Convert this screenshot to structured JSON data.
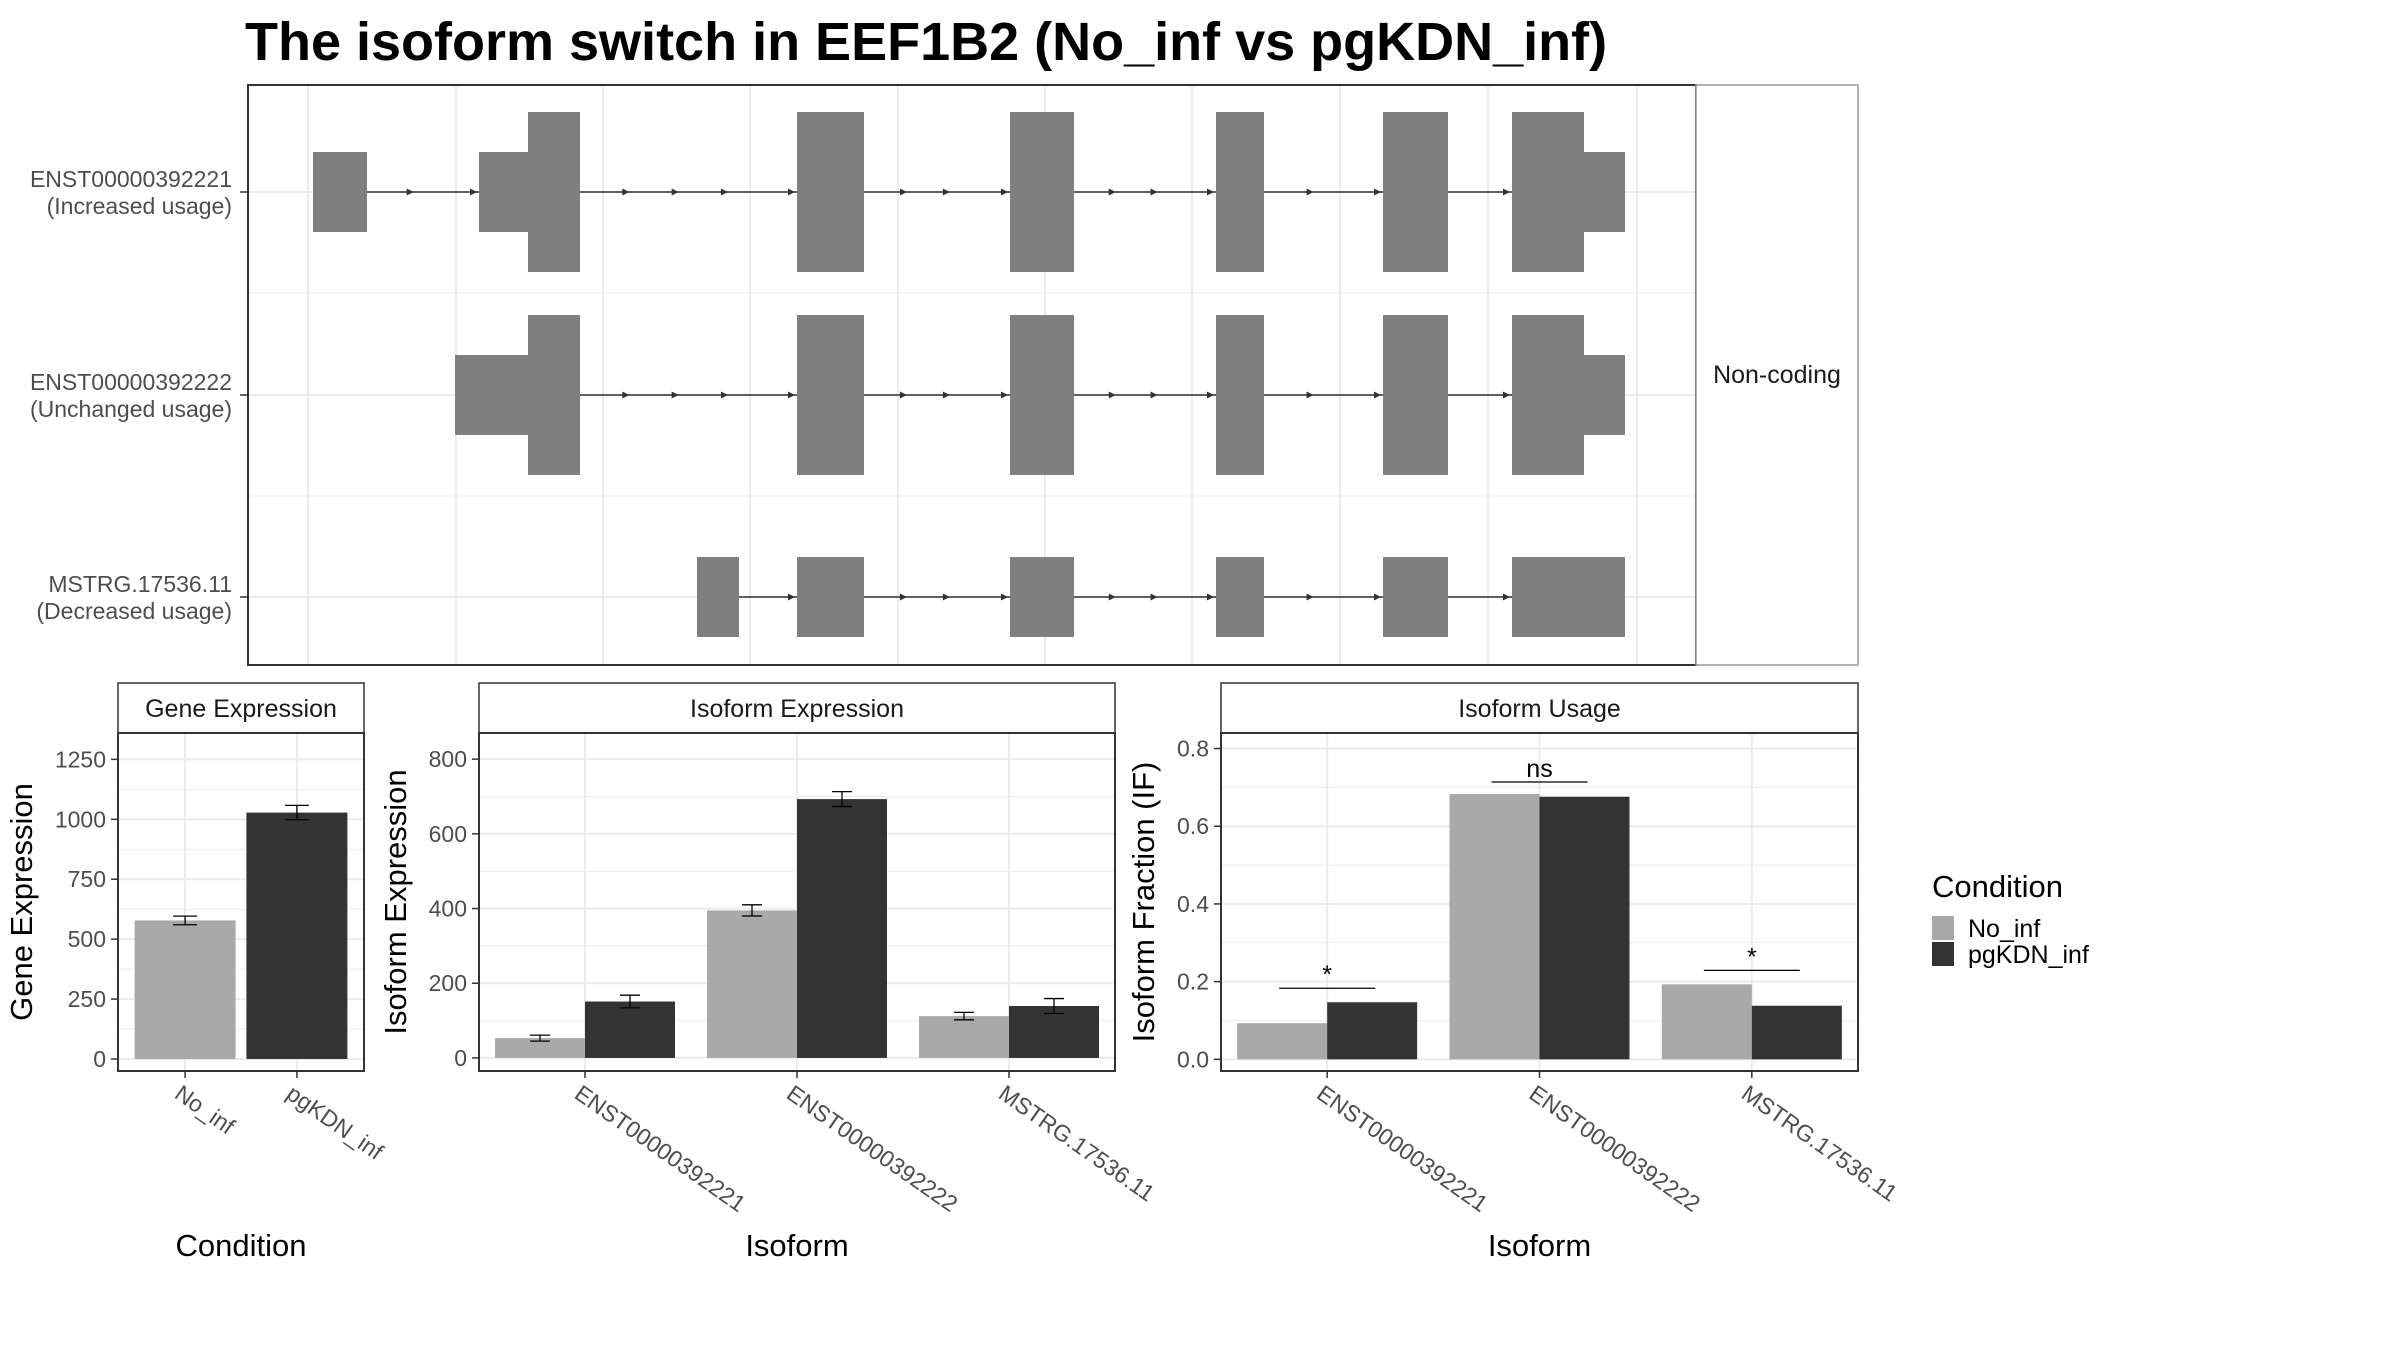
{
  "title": "The isoform switch in EEF1B2 (No_inf vs pgKDN_inf)",
  "colors": {
    "no_inf": "#a9a9a9",
    "pgkdn_inf": "#333333",
    "exon": "#7f7f7f",
    "intron": "#333333",
    "grid": "#ebebeb",
    "panel_border": "#333333",
    "strip_bg": "#ffffff"
  },
  "legend": {
    "title": "Condition",
    "items": [
      {
        "label": "No_inf",
        "color": "#a9a9a9"
      },
      {
        "label": "pgKDN_inf",
        "color": "#333333"
      }
    ]
  },
  "chart_data": [
    {
      "type": "gene-structure",
      "strip_label": "Non-coding",
      "transcripts": [
        {
          "id": "ENST00000392221",
          "usage": "(Increased usage)"
        },
        {
          "id": "ENST00000392222",
          "usage": "(Unchanged usage)"
        },
        {
          "id": "MSTRG.17536.11",
          "usage": "(Decreased usage)"
        }
      ]
    },
    {
      "type": "bar",
      "panel": "Gene Expression",
      "categories": [
        "No_inf",
        "pgKDN_inf"
      ],
      "values": [
        578,
        1028
      ],
      "errors": [
        18,
        30
      ],
      "xlabel": "Condition",
      "ylabel": "Gene Expression",
      "ylim": [
        -50,
        1360
      ],
      "yticks": [
        0,
        250,
        500,
        750,
        1000,
        1250
      ],
      "grid": true
    },
    {
      "type": "bar",
      "panel": "Isoform Expression",
      "categories": [
        "ENST00000392221",
        "ENST00000392222",
        "MSTRG.17536.11"
      ],
      "series": [
        {
          "name": "No_inf",
          "values": [
            53,
            395,
            112
          ],
          "errors": [
            8,
            15,
            10
          ]
        },
        {
          "name": "pgKDN_inf",
          "values": [
            151,
            693,
            139
          ],
          "errors": [
            17,
            20,
            20
          ]
        }
      ],
      "xlabel": "Isoform",
      "ylabel": "Isoform Expression",
      "ylim": [
        -35,
        870
      ],
      "yticks": [
        0,
        200,
        400,
        600,
        800
      ],
      "grid": true
    },
    {
      "type": "bar",
      "panel": "Isoform Usage",
      "categories": [
        "ENST00000392221",
        "ENST00000392222",
        "MSTRG.17536.11"
      ],
      "series": [
        {
          "name": "No_inf",
          "values": [
            0.093,
            0.683,
            0.193
          ]
        },
        {
          "name": "pgKDN_inf",
          "values": [
            0.147,
            0.676,
            0.138
          ]
        }
      ],
      "significance": [
        "*",
        "ns",
        "*"
      ],
      "xlabel": "Isoform",
      "ylabel": "Isoform Fraction (IF)",
      "ylim": [
        -0.03,
        0.84
      ],
      "yticks": [
        0.0,
        0.2,
        0.4,
        0.6,
        0.8
      ],
      "grid": true
    }
  ]
}
